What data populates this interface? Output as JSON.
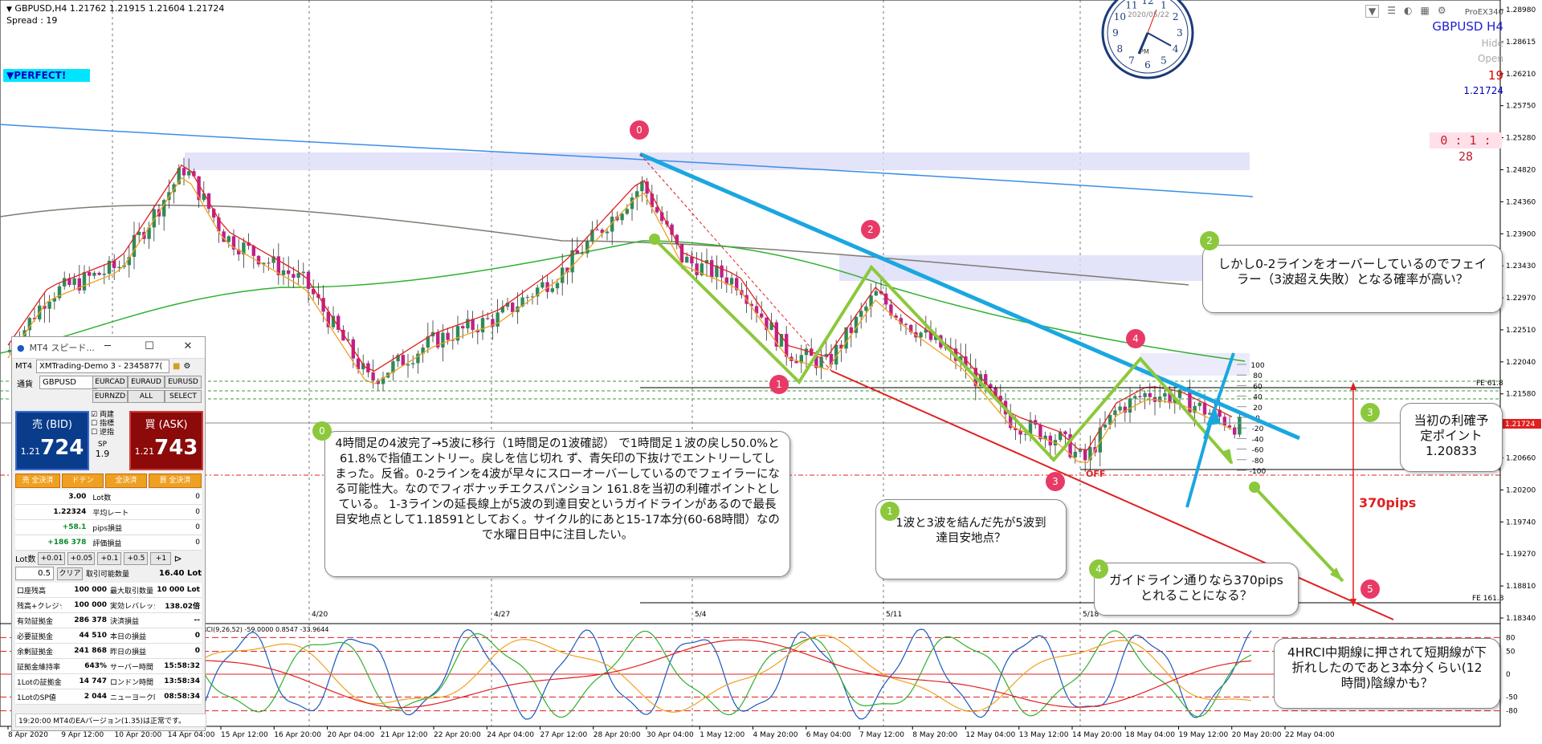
{
  "header": {
    "symbol_line": "GBPUSD,H4  1.21762 1.21915 1.21604 1.21724",
    "spread": "Spread : 19",
    "perfect_badge": "▼PERFECT!"
  },
  "right_info": {
    "broker": "ProEX340",
    "pair": "GBPUSD H4",
    "hide": "Hide",
    "open": "Open",
    "spread_value": "19",
    "price": "1.21724",
    "timer": "0 : 1 : 28"
  },
  "clock": {
    "date": "2020/05/22",
    "pm": "PM"
  },
  "chart_data": {
    "type": "candlestick",
    "symbol": "GBPUSD",
    "timeframe": "H4",
    "ylim": [
      1.1836,
      1.2898
    ],
    "y_ticks": [
      "1.28980",
      "1.28615",
      "1.26210",
      "1.25750",
      "1.25280",
      "1.24820",
      "1.24360",
      "1.23900",
      "1.23430",
      "1.22970",
      "1.22510",
      "1.22040",
      "1.21580",
      "1.21120",
      "1.20660",
      "1.20200",
      "1.19740",
      "1.19270",
      "1.18810",
      "1.18340"
    ],
    "x_ticks": [
      "8 Apr 2020",
      "9 Apr 12:00",
      "10 Apr 20:00",
      "14 Apr 04:00",
      "15 Apr 12:00",
      "16 Apr 20:00",
      "20 Apr 04:00",
      "21 Apr 12:00",
      "22 Apr 20:00",
      "24 Apr 04:00",
      "27 Apr 12:00",
      "28 Apr 20:00",
      "30 Apr 04:00",
      "1 May 12:00",
      "4 May 20:00",
      "6 May 04:00",
      "7 May 12:00",
      "8 May 20:00",
      "12 May 04:00",
      "13 May 12:00",
      "14 May 20:00",
      "18 May 04:00",
      "19 May 12:00",
      "20 May 20:00",
      "22 May 04:00"
    ],
    "date_markers": [
      "4/20",
      "4/27",
      "5/4",
      "5/11",
      "5/18"
    ],
    "current_price": "1.21724",
    "fib_labels": {
      "fe618": "FE 61.8",
      "fe1618": "FE 161.8"
    },
    "level_labels": [
      "100",
      "80",
      "60",
      "40",
      "20",
      "0",
      "-20",
      "-40",
      "-60",
      "-80",
      "-100"
    ],
    "off_label": "OFF",
    "pips_label": "370pips",
    "oscillator_label": "RCI(9,26,52) -59.0000 0.8547 -33.9644",
    "oscillator_ticks": [
      "80",
      "50",
      "0",
      "-50",
      "-80"
    ],
    "wave_labels": [
      "0",
      "1",
      "2",
      "3",
      "4",
      "5"
    ],
    "grid": true
  },
  "panel": {
    "title": "MT4 スピード...",
    "account_label": "MT4",
    "account": "XMTrading-Demo 3 - 2345877(",
    "symbol_label": "通貨",
    "symbol": "GBPUSD",
    "pairs": [
      "EURCAD",
      "EURAUD",
      "EURUSD",
      "EURNZD",
      "ALL",
      "SELECT"
    ],
    "bid_label": "売 (BID)",
    "bid_small": "1.21",
    "bid_big": "724",
    "ask_label": "買 (ASK)",
    "ask_small": "1.21",
    "ask_big": "743",
    "checks": [
      "両建",
      "指標",
      "逆指"
    ],
    "sp_label": "SP",
    "sp_value": "1.9",
    "buttons": [
      "売 全決済",
      "ドテン",
      "全決済",
      "買 全決済"
    ],
    "stats": [
      {
        "v": "3.00",
        "k": "Lot数",
        "z": "0"
      },
      {
        "v": "1.22324",
        "k": "平均レート",
        "z": "0"
      },
      {
        "v": "+58.1",
        "k": "pips損益",
        "z": "0"
      },
      {
        "v": "+186 378",
        "k": "評価損益",
        "z": "0"
      }
    ],
    "lot_label": "Lot数",
    "lot_steps": [
      "+0.01",
      "+0.05",
      "+0.1",
      "+0.5",
      "+1"
    ],
    "lot_value": "0.5",
    "clear": "クリア",
    "trade_qty_label": "取引可能数量",
    "trade_qty": "16.40 Lot",
    "account_table": [
      [
        "口座残高",
        "100 000",
        "最大取引数量",
        "10 000 Lot"
      ],
      [
        "残高+クレジット",
        "100 000",
        "実効レバレッジ",
        "138.02倍"
      ],
      [
        "有効証拠金",
        "286 378",
        "決済損益",
        "--"
      ],
      [
        "必要証拠金",
        "44 510",
        "本日の損益",
        "0"
      ],
      [
        "余剰証拠金",
        "241 868",
        "昨日の損益",
        "0"
      ],
      [
        "証拠金維持率",
        "643%",
        "サーバー時間",
        "15:58:32"
      ],
      [
        "1Lotの証拠金",
        "14 747",
        "ロンドン時間",
        "13:58:34"
      ],
      [
        "1LotのSP値",
        "2 044",
        "ニューヨーク時間",
        "08:58:34"
      ]
    ],
    "footer": "19:20:00 MT4のEAバージョン(1.35)は正常です。"
  },
  "callouts": {
    "c0": "4時間足の4波完了→5波に移行（1時間足の1波確認） で1時間足１波の戻し50.0%と61.8%で指値エントリー。戻しを信じ切れ ず、青矢印の下抜けでエントリーしてしまった。反省。0-2ラインを4波が早々にスローオーバーしているのでフェイラーになる可能性大。なのでフィボナッチエクスパンション 161.8を当初の利確ポイントとしている。 1-3ラインの延長線上が5波の到達目安というガイドラインがあるので最長目安地点として1.18591としておく。サイクル的にあと15-17本分(60-68時間）なので水曜日日中に注目したい。",
    "c1": "1波と3波を結んだ先が5波到達目安地点？",
    "c2": "しかし0-2ラインをオーバーしているのでフェイラー（3波超え失敗）となる確率が高い？",
    "c3": "当初の利確予定ポイント 1.20833",
    "c4": "ガイドライン通りなら370pipsとれることになる？",
    "c5": "4HRCI中期線に押されて短期線が下折れしたのであと3本分くらい(12時間)陰線かも？"
  },
  "colors": {
    "bull": "#2e8b57",
    "bear": "#c0208a",
    "blue_line": "#1aa7e0",
    "green_wave": "#8cc83c",
    "red_channel": "#e02020",
    "wave_marker": "#e83a66"
  }
}
